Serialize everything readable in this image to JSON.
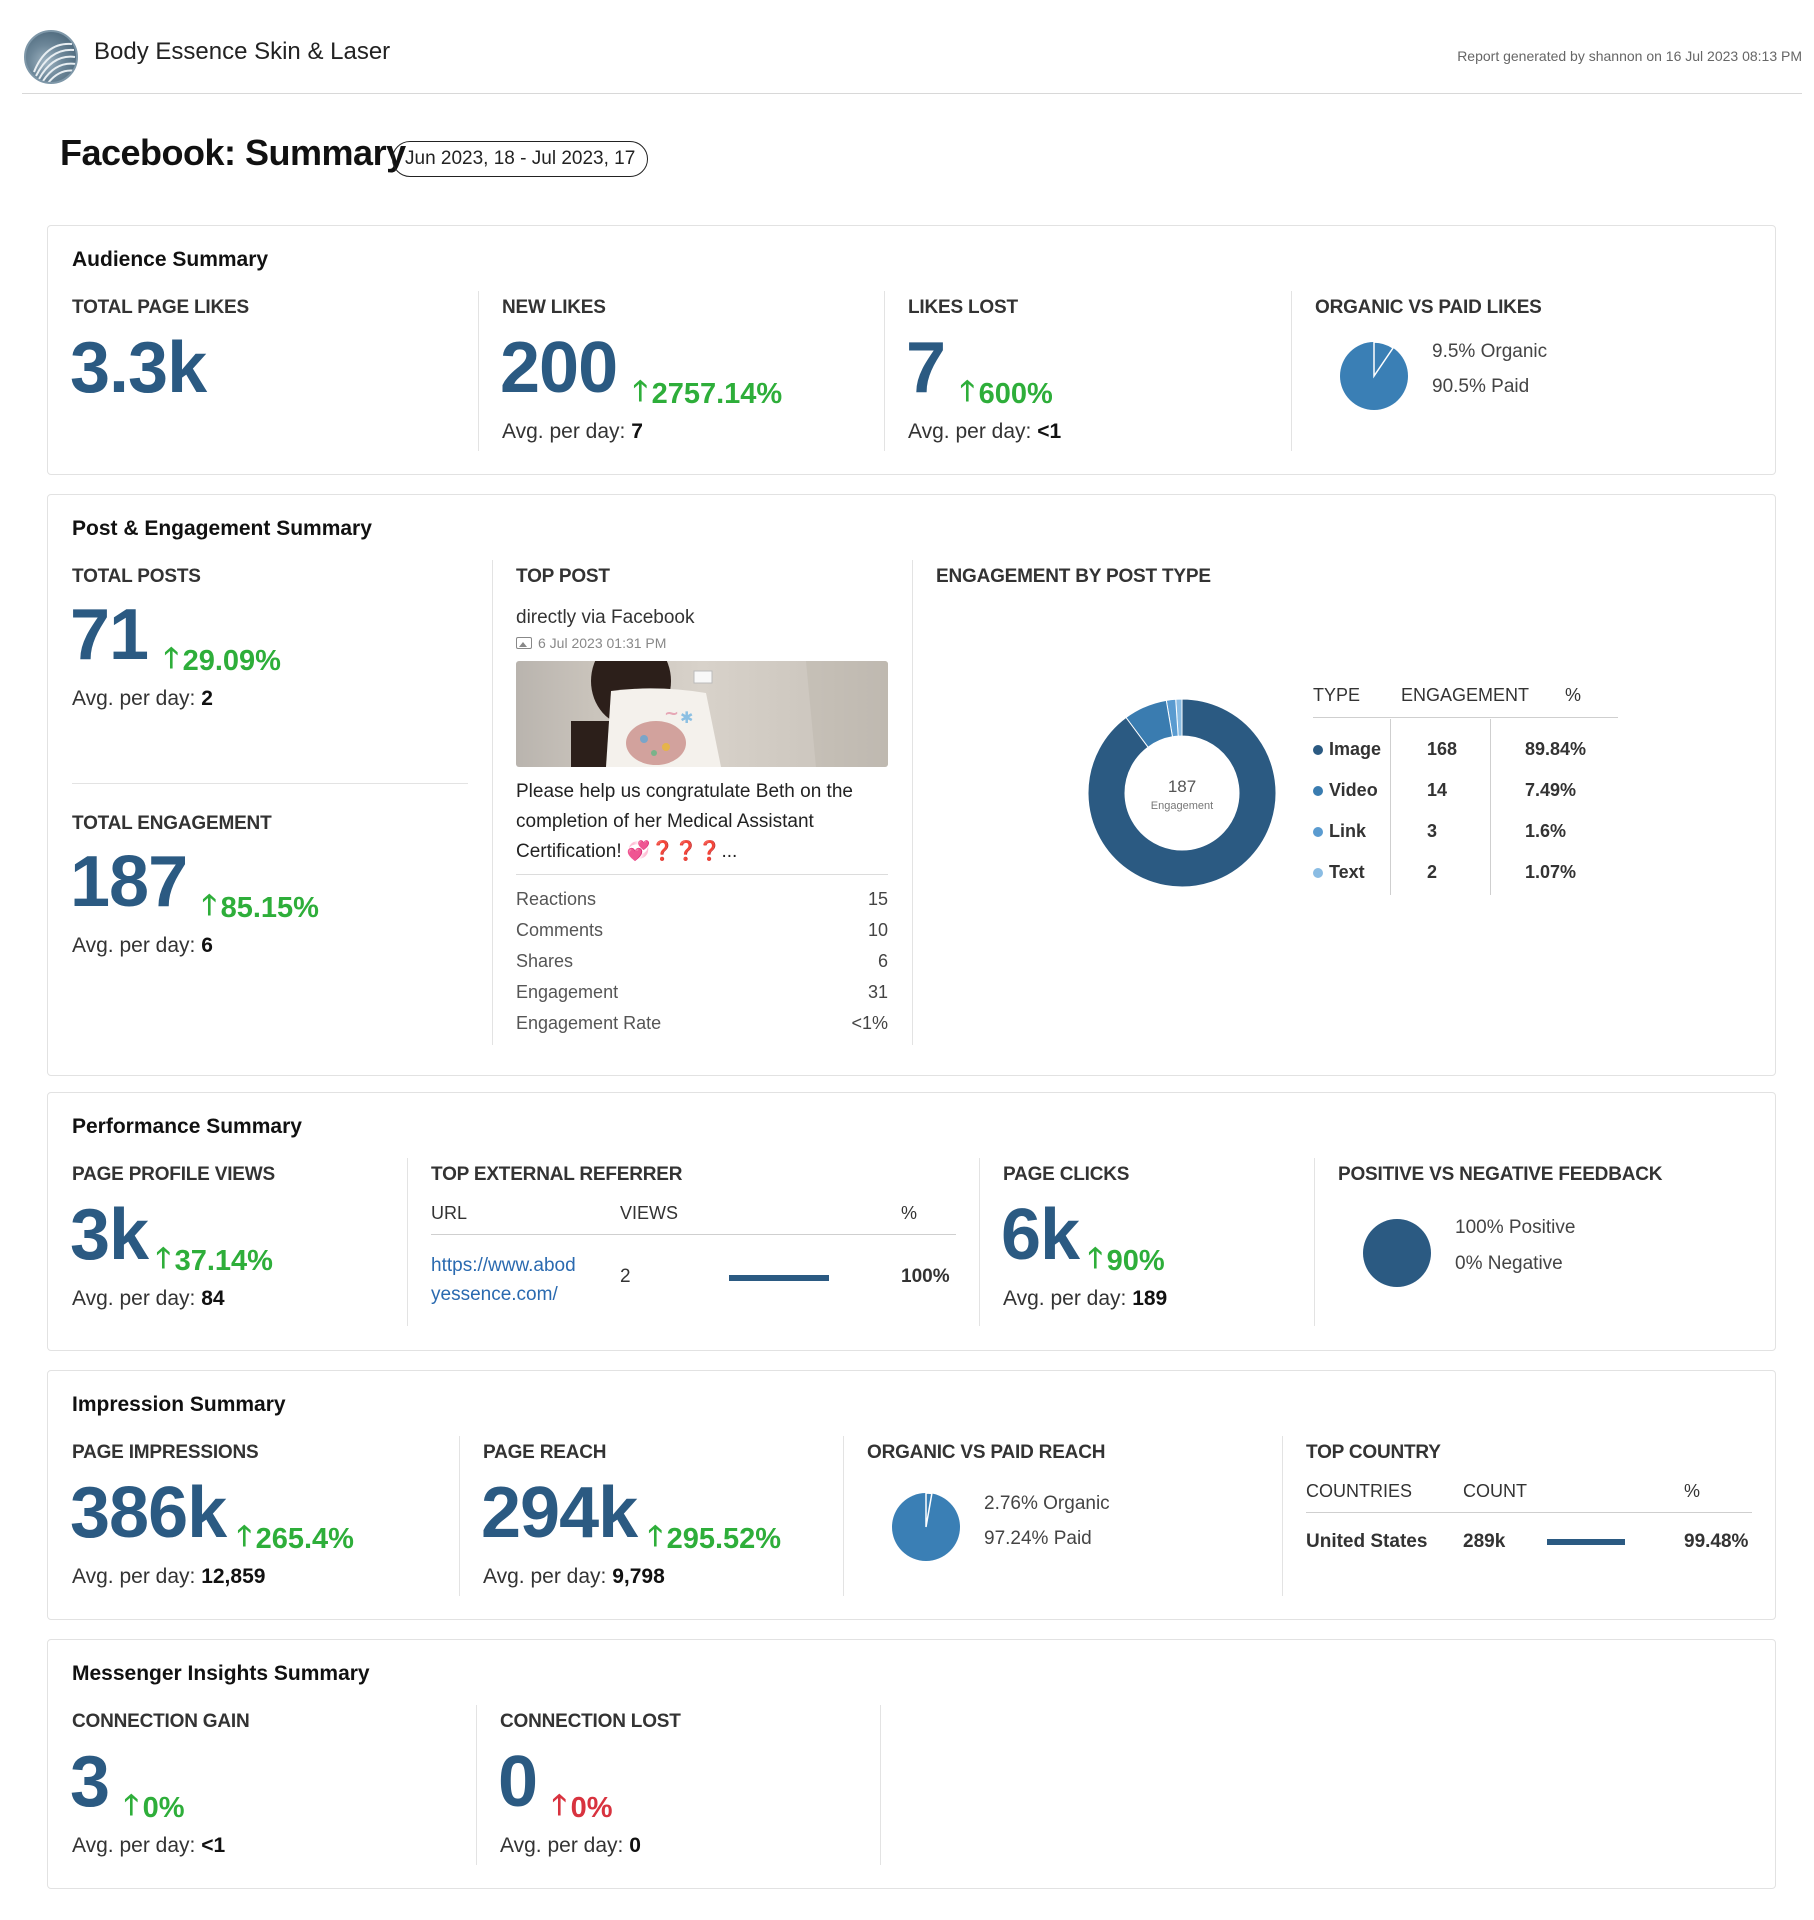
{
  "header": {
    "brand": "Body Essence Skin & Laser",
    "report_generated": "Report generated by shannon on 16 Jul 2023 08:13 PM"
  },
  "page": {
    "title": "Facebook: Summary",
    "date_range": "Jun 2023, 18 - Jul 2023, 17"
  },
  "audience": {
    "title": "Audience Summary",
    "total_likes": {
      "label": "TOTAL PAGE LIKES",
      "value": "3.3k"
    },
    "new_likes": {
      "label": "NEW LIKES",
      "value": "200",
      "delta": "2757.14%",
      "avg_label": "Avg. per day:",
      "avg": "7"
    },
    "likes_lost": {
      "label": "LIKES LOST",
      "value": "7",
      "delta": "600%",
      "avg_label": "Avg. per day:",
      "avg": "<1"
    },
    "organic_paid": {
      "label": "ORGANIC VS PAID LIKES",
      "organic": "9.5% Organic",
      "paid": "90.5% Paid",
      "organic_fraction": 0.095
    }
  },
  "post": {
    "title": "Post & Engagement Summary",
    "total_posts": {
      "label": "TOTAL POSTS",
      "value": "71",
      "delta": "29.09%",
      "avg_label": "Avg. per day:",
      "avg": "2"
    },
    "total_engagement": {
      "label": "TOTAL ENGAGEMENT",
      "value": "187",
      "delta": "85.15%",
      "avg_label": "Avg. per day:",
      "avg": "6"
    },
    "top_post": {
      "label": "TOP POST",
      "source": "directly via Facebook",
      "date": "6 Jul 2023 01:31 PM",
      "text": "Please help us congratulate Beth on the completion of her Medical Assistant Certification! 💞❓❓❓...",
      "stats": [
        {
          "name": "Reactions",
          "value": "15"
        },
        {
          "name": "Comments",
          "value": "10"
        },
        {
          "name": "Shares",
          "value": "6"
        },
        {
          "name": "Engagement",
          "value": "31"
        },
        {
          "name": "Engagement Rate",
          "value": "<1%"
        }
      ]
    },
    "engagement_by_type": {
      "label": "ENGAGEMENT BY POST TYPE",
      "center_value": "187",
      "center_label": "Engagement",
      "headers": {
        "type": "TYPE",
        "engagement": "ENGAGEMENT",
        "pct": "%"
      },
      "rows": [
        {
          "type": "Image",
          "engagement": "168",
          "pct": "89.84%",
          "color": "#2b5a82"
        },
        {
          "type": "Video",
          "engagement": "14",
          "pct": "7.49%",
          "color": "#3a7cb0"
        },
        {
          "type": "Link",
          "engagement": "3",
          "pct": "1.6%",
          "color": "#5a9bd0"
        },
        {
          "type": "Text",
          "engagement": "2",
          "pct": "1.07%",
          "color": "#8abce3"
        }
      ]
    }
  },
  "performance": {
    "title": "Performance Summary",
    "profile_views": {
      "label": "PAGE PROFILE VIEWS",
      "value": "3k",
      "delta": "37.14%",
      "avg_label": "Avg. per day:",
      "avg": "84"
    },
    "referrer": {
      "label": "TOP EXTERNAL REFERRER",
      "headers": {
        "url": "URL",
        "views": "VIEWS",
        "pct": "%"
      },
      "row": {
        "url": "https://www.abodyessence.com/",
        "url_line1": "https://www.abod",
        "url_line2": "yessence.com/",
        "views": "2",
        "pct": "100%",
        "fraction": 1.0
      }
    },
    "page_clicks": {
      "label": "PAGE CLICKS",
      "value": "6k",
      "delta": "90%",
      "avg_label": "Avg. per day:",
      "avg": "189"
    },
    "feedback": {
      "label": "POSITIVE VS NEGATIVE FEEDBACK",
      "positive": "100%  Positive",
      "negative": "0%  Negative"
    }
  },
  "impression": {
    "title": "Impression Summary",
    "page_impressions": {
      "label": "PAGE IMPRESSIONS",
      "value": "386k",
      "delta": "265.4%",
      "avg_label": "Avg. per day:",
      "avg": "12,859"
    },
    "page_reach": {
      "label": "PAGE REACH",
      "value": "294k",
      "delta": "295.52%",
      "avg_label": "Avg. per day:",
      "avg": "9,798"
    },
    "organic_paid_reach": {
      "label": "ORGANIC VS PAID REACH",
      "organic": "2.76% Organic",
      "paid": "97.24% Paid",
      "organic_fraction": 0.0276
    },
    "top_country": {
      "label": "TOP COUNTRY",
      "headers": {
        "country": "COUNTRIES",
        "count": "COUNT",
        "pct": "%"
      },
      "row": {
        "country": "United States",
        "count": "289k",
        "pct": "99.48%",
        "fraction": 0.9948
      }
    }
  },
  "messenger": {
    "title": "Messenger Insights Summary",
    "gain": {
      "label": "CONNECTION GAIN",
      "value": "3",
      "delta": "0%",
      "avg_label": "Avg. per day:",
      "avg": "<1"
    },
    "lost": {
      "label": "CONNECTION LOST",
      "value": "0",
      "delta": "0%",
      "avg_label": "Avg. per day:",
      "avg": "0"
    }
  },
  "colors": {
    "primary": "#2b5a82",
    "pie": "#3a7fb5",
    "up": "#2eae3a",
    "down": "#d8333f"
  }
}
